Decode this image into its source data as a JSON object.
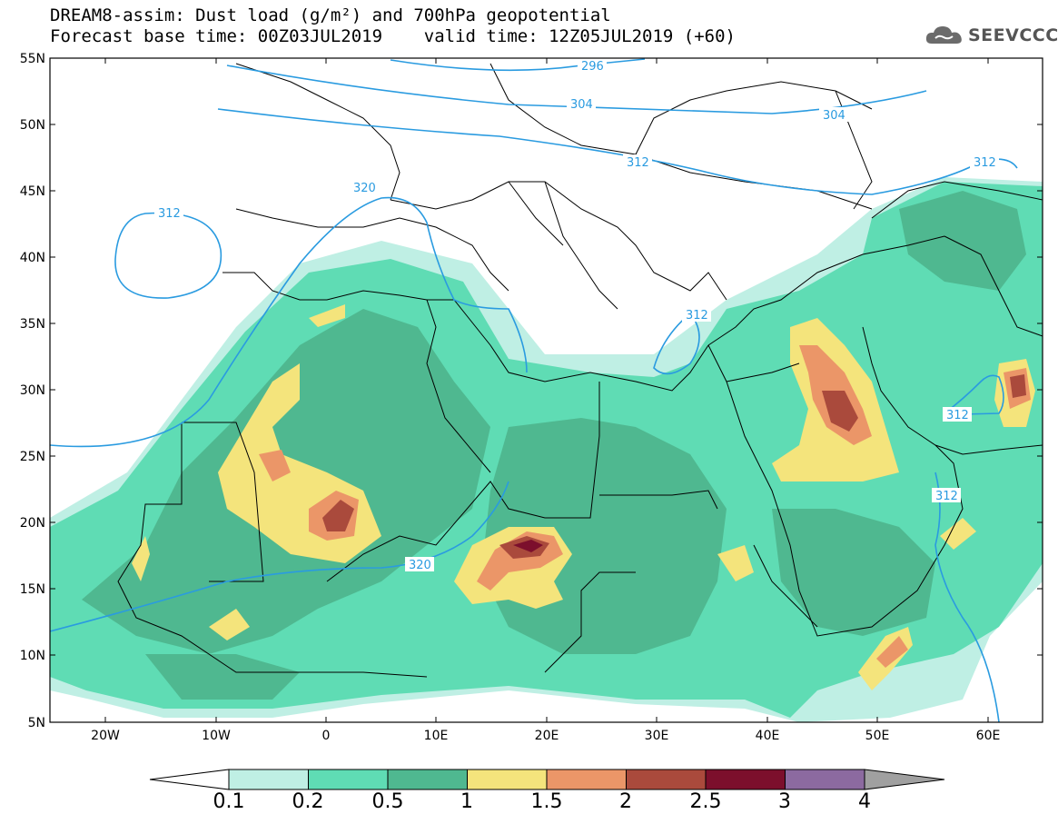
{
  "header": {
    "line1": "DREAM8-assim: Dust load (g/m²) and 700hPa geopotential",
    "line2": "Forecast base time: 00Z03JUL2019    valid time: 12Z05JUL2019 (+60)"
  },
  "logo": {
    "text": "SEEVCCC",
    "icon": "cloud-icon"
  },
  "lat_labels": [
    "55N",
    "50N",
    "45N",
    "40N",
    "35N",
    "30N",
    "25N",
    "20N",
    "15N",
    "10N",
    "5N"
  ],
  "lon_labels": [
    "20W",
    "10W",
    "0",
    "10E",
    "20E",
    "30E",
    "40E",
    "50E",
    "60E"
  ],
  "colorbar": {
    "ticks": [
      "0.1",
      "0.2",
      "0.5",
      "1",
      "1.5",
      "2",
      "2.5",
      "3",
      "4"
    ],
    "colors": [
      "#bfefe4",
      "#5fdcb4",
      "#4fb890",
      "#f4e47c",
      "#eb9668",
      "#aa4a3c",
      "#7c0f2c",
      "#8c6aa0"
    ],
    "below_color": "#ffffff",
    "above_color": "#a0a0a0"
  },
  "contour_labels": [
    {
      "id": "c296",
      "text": "296"
    },
    {
      "id": "c304a",
      "text": "304"
    },
    {
      "id": "c304b",
      "text": "304"
    },
    {
      "id": "c312a",
      "text": "312"
    },
    {
      "id": "c312b",
      "text": "312"
    },
    {
      "id": "c312c",
      "text": "312"
    },
    {
      "id": "c312d",
      "text": "312"
    },
    {
      "id": "c312e",
      "text": "312"
    },
    {
      "id": "c312f",
      "text": "312"
    },
    {
      "id": "c320a",
      "text": "320"
    },
    {
      "id": "c320b",
      "text": "320"
    }
  ],
  "colors": {
    "contour": "#2a9be0",
    "border": "#000000"
  }
}
